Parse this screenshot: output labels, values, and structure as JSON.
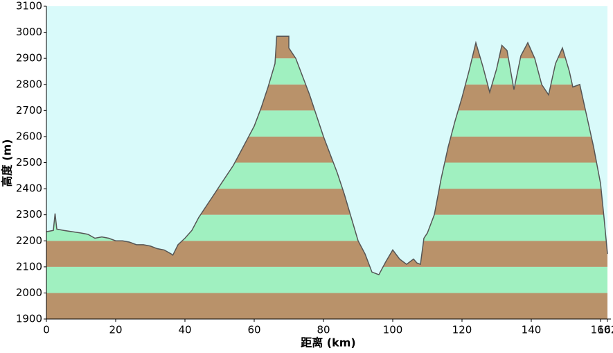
{
  "chart_data": {
    "type": "area",
    "x_label": "距离  (km)",
    "y_label": "高度 (m)",
    "x": [
      0,
      2,
      2.5,
      3,
      5,
      10,
      12,
      14,
      16,
      18,
      20,
      22,
      24,
      26,
      28,
      30,
      32,
      34,
      36,
      36.5,
      38,
      40,
      42,
      44,
      46,
      48,
      50,
      52,
      54,
      56,
      58,
      60,
      62,
      64,
      66,
      66.5,
      70,
      70,
      72,
      74,
      76,
      78,
      80,
      82,
      84,
      86,
      88,
      90,
      92,
      94,
      96,
      98,
      100,
      102,
      104,
      106,
      107,
      108,
      109,
      110,
      112,
      114,
      116,
      118,
      120,
      122,
      124,
      126,
      128,
      130,
      131.5,
      133,
      135,
      137,
      139,
      141,
      143,
      145,
      147,
      149,
      151,
      152,
      154,
      156,
      158,
      160,
      161,
      162
    ],
    "y": [
      2235,
      2240,
      2305,
      2245,
      2240,
      2230,
      2225,
      2210,
      2215,
      2210,
      2200,
      2200,
      2195,
      2185,
      2185,
      2180,
      2170,
      2165,
      2150,
      2145,
      2185,
      2210,
      2240,
      2290,
      2330,
      2370,
      2410,
      2450,
      2490,
      2540,
      2590,
      2640,
      2710,
      2790,
      2880,
      2985,
      2985,
      2940,
      2900,
      2830,
      2760,
      2680,
      2600,
      2530,
      2460,
      2380,
      2290,
      2200,
      2150,
      2080,
      2070,
      2120,
      2165,
      2130,
      2110,
      2130,
      2115,
      2110,
      2210,
      2230,
      2300,
      2440,
      2560,
      2660,
      2750,
      2850,
      2960,
      2870,
      2770,
      2860,
      2950,
      2930,
      2780,
      2910,
      2960,
      2900,
      2800,
      2760,
      2880,
      2940,
      2850,
      2790,
      2800,
      2680,
      2560,
      2420,
      2290,
      2150
    ],
    "xlim": [
      0,
      162
    ],
    "xticks": [
      0,
      20,
      40,
      60,
      80,
      100,
      120,
      140,
      160,
      162
    ],
    "ylim": [
      1900,
      3100
    ],
    "yticks": [
      1900,
      2000,
      2100,
      2200,
      2300,
      2400,
      2500,
      2600,
      2700,
      2800,
      2900,
      3000,
      3100
    ],
    "band_colors": [
      "#b9926a",
      "#a0f0c0"
    ],
    "line_color": "#555555",
    "background": "#d9fafa"
  }
}
